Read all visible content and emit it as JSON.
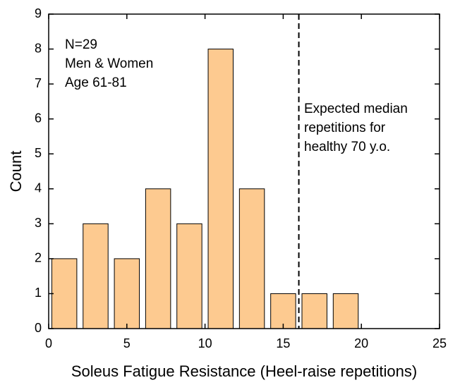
{
  "chart_data": {
    "type": "histogram",
    "bins": [
      0,
      2,
      4,
      6,
      8,
      10,
      12,
      14,
      16,
      18,
      20
    ],
    "counts": [
      2,
      3,
      2,
      4,
      3,
      8,
      4,
      1,
      1,
      1
    ],
    "color": "#fdca90",
    "edgecolor": "#000000",
    "xlabel": "Soleus Fatigue Resistance (Heel-raise repetitions)",
    "ylabel": "Count",
    "xlim": [
      0,
      25
    ],
    "xticks": [
      0,
      5,
      10,
      15,
      20,
      25
    ],
    "ylim": [
      0,
      9
    ],
    "yticks": [
      0,
      1,
      2,
      3,
      4,
      5,
      6,
      7,
      8,
      9
    ],
    "reference_line": {
      "x": 16,
      "style": "dashed"
    },
    "annotations": [
      {
        "lines": [
          "N=29",
          "Men & Women",
          "Age 61-81"
        ]
      },
      {
        "lines": [
          "Expected median",
          "repetitions for",
          "healthy 70 y.o."
        ]
      }
    ]
  }
}
